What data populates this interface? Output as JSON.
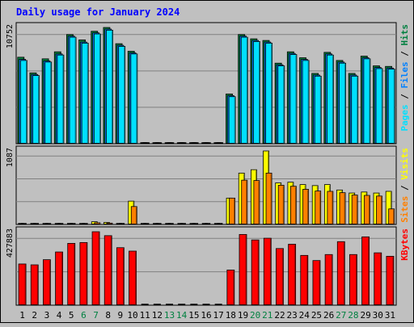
{
  "chart_data": [
    {
      "type": "bar",
      "title": "Daily usage for January 2024",
      "categories": [
        "1",
        "2",
        "3",
        "4",
        "5",
        "6",
        "7",
        "8",
        "9",
        "10",
        "11",
        "12",
        "13",
        "14",
        "15",
        "16",
        "17",
        "18",
        "19",
        "20",
        "21",
        "22",
        "23",
        "24",
        "25",
        "26",
        "27",
        "28",
        "29",
        "30",
        "31"
      ],
      "weekend_days": [
        6,
        7,
        13,
        14,
        20,
        21,
        27,
        28
      ],
      "ymax": 10752,
      "ylabel_parts": [
        "Pages",
        "Files",
        "Hits"
      ],
      "ylabel_colors": [
        "#00e0ff",
        "#0080ff",
        "#008040"
      ],
      "series": [
        {
          "name": "Hits",
          "color": "#008040",
          "values": [
            8000,
            6550,
            7850,
            8500,
            10100,
            9600,
            10400,
            10750,
            9250,
            8550,
            0,
            0,
            0,
            0,
            0,
            0,
            0,
            4600,
            10100,
            9700,
            9550,
            7450,
            8500,
            7950,
            6500,
            8450,
            7700,
            6500,
            8100,
            7200,
            7150
          ]
        },
        {
          "name": "Files",
          "color": "#0080ff",
          "values": [
            7800,
            6400,
            7650,
            8300,
            9950,
            9400,
            10250,
            10600,
            9100,
            8400,
            0,
            0,
            0,
            0,
            0,
            0,
            0,
            4450,
            9950,
            9550,
            9400,
            7300,
            8350,
            7800,
            6350,
            8300,
            7550,
            6350,
            7950,
            7050,
            7000
          ]
        },
        {
          "name": "Pages",
          "color": "#00e0ff",
          "values": [
            7700,
            6300,
            7550,
            8200,
            9850,
            9300,
            10150,
            10500,
            9000,
            8300,
            0,
            0,
            0,
            0,
            0,
            0,
            0,
            4350,
            9850,
            9450,
            9300,
            7200,
            8250,
            7700,
            6250,
            8200,
            7450,
            6250,
            7850,
            6950,
            6900
          ]
        }
      ]
    },
    {
      "type": "bar",
      "ymax": 1087,
      "ylabel_parts": [
        "Sites",
        "Visits"
      ],
      "ylabel_colors": [
        "#ff8000",
        "#ffff00"
      ],
      "series": [
        {
          "name": "Visits",
          "color": "#ffff00",
          "values": [
            10,
            10,
            10,
            10,
            10,
            10,
            40,
            30,
            10,
            345,
            0,
            0,
            0,
            0,
            0,
            0,
            0,
            390,
            760,
            810,
            1087,
            615,
            625,
            590,
            575,
            590,
            510,
            465,
            480,
            465,
            490
          ]
        },
        {
          "name": "Sites",
          "color": "#ff8000",
          "values": [
            8,
            8,
            8,
            8,
            8,
            8,
            25,
            20,
            8,
            265,
            0,
            0,
            0,
            0,
            0,
            0,
            0,
            390,
            655,
            650,
            760,
            580,
            565,
            520,
            495,
            490,
            470,
            435,
            430,
            420,
            230
          ]
        }
      ]
    },
    {
      "type": "bar",
      "ymax": 427883,
      "ylabel_parts": [
        "KBytes"
      ],
      "ylabel_colors": [
        "#ff0000"
      ],
      "series": [
        {
          "name": "KBytes",
          "color": "#ff0000",
          "values": [
            240000,
            235000,
            265000,
            310000,
            360000,
            365000,
            427883,
            405000,
            335000,
            315000,
            0,
            0,
            0,
            0,
            0,
            0,
            0,
            205000,
            412000,
            380000,
            390000,
            330000,
            355000,
            290000,
            260000,
            295000,
            370000,
            295000,
            398000,
            305000,
            285000
          ]
        }
      ]
    }
  ]
}
